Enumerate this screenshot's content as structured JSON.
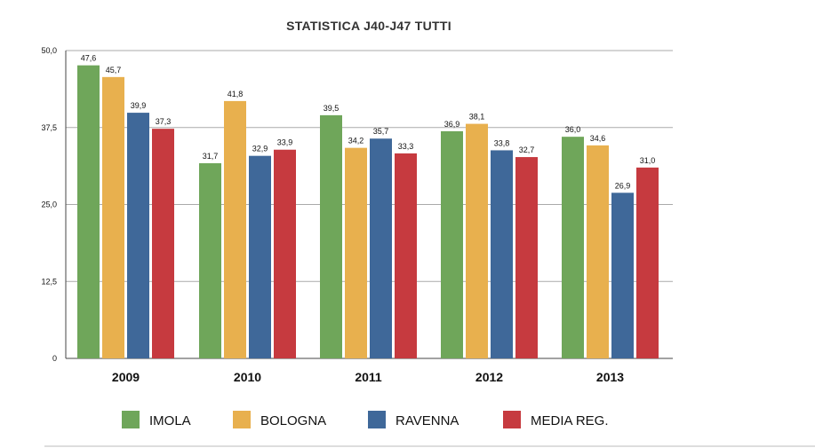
{
  "chart_data": {
    "type": "bar",
    "title": "STATISTICA J40-J47 TUTTI",
    "categories": [
      "2009",
      "2010",
      "2011",
      "2012",
      "2013"
    ],
    "ylim": [
      0,
      50
    ],
    "yticks": [
      "0",
      "12,5",
      "25,0",
      "37,5",
      "50,0"
    ],
    "ytick_values": [
      0,
      12.5,
      25,
      37.5,
      50
    ],
    "grid": true,
    "legend_position": "bottom",
    "series": [
      {
        "name": "IMOLA",
        "color": "#6fa65a",
        "values": [
          47.6,
          31.7,
          39.5,
          36.9,
          36.0
        ],
        "labels": [
          "47,6",
          "31,7",
          "39,5",
          "36,9",
          "36,0"
        ]
      },
      {
        "name": "BOLOGNA",
        "color": "#e8b04e",
        "values": [
          45.7,
          41.8,
          34.2,
          38.1,
          34.6
        ],
        "labels": [
          "45,7",
          "41,8",
          "34,2",
          "38,1",
          "34,6"
        ]
      },
      {
        "name": "RAVENNA",
        "color": "#3f6899",
        "values": [
          39.9,
          32.9,
          35.7,
          33.8,
          26.9
        ],
        "labels": [
          "39,9",
          "32,9",
          "35,7",
          "33,8",
          "26,9"
        ]
      },
      {
        "name": "MEDIA REG.",
        "color": "#c63a3f",
        "values": [
          37.3,
          33.9,
          33.3,
          32.7,
          31.0
        ],
        "labels": [
          "37,3",
          "33,9",
          "33,3",
          "32,7",
          "31,0"
        ]
      }
    ]
  }
}
